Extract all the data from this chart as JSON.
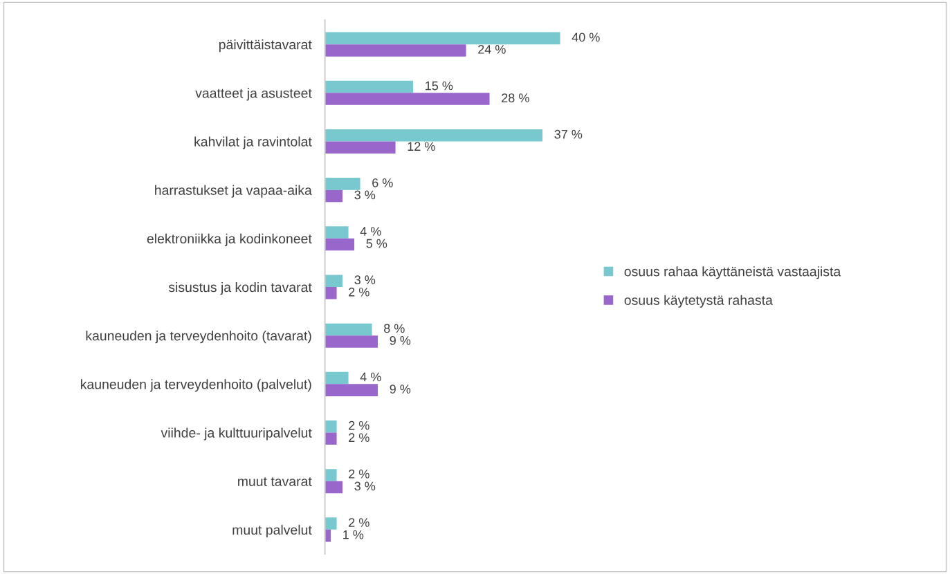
{
  "chart_data": {
    "type": "bar",
    "orientation": "horizontal",
    "categories": [
      "päivittäistavarat",
      "vaatteet ja asusteet",
      "kahvilat ja ravintolat",
      "harrastukset ja vapaa-aika",
      "elektroniikka ja kodinkoneet",
      "sisustus ja kodin tavarat",
      "kauneuden ja terveydenhoito (tavarat)",
      "kauneuden ja terveydenhoito (palvelut)",
      "viihde- ja kulttuuripalvelut",
      "muut tavarat",
      "muut palvelut"
    ],
    "series": [
      {
        "name": "osuus rahaa käyttäneistä vastaajista",
        "color": "#78c9cf",
        "values": [
          40,
          15,
          37,
          6,
          4,
          3,
          8,
          4,
          2,
          2,
          2
        ],
        "value_labels": [
          "40 %",
          "15 %",
          "37 %",
          "6 %",
          "4 %",
          "3 %",
          "8 %",
          "4 %",
          "2 %",
          "2 %",
          "2 %"
        ]
      },
      {
        "name": "osuus käytetystä rahasta",
        "color": "#9966cc",
        "values": [
          24,
          28,
          12,
          3,
          5,
          2,
          9,
          9,
          2,
          3,
          1
        ],
        "value_labels": [
          "24 %",
          "28 %",
          "12 %",
          "3 %",
          "5 %",
          "2 %",
          "9 %",
          "9 %",
          "2 %",
          "3 %",
          "1 %"
        ]
      }
    ],
    "tick_labels": "y",
    "grid": false,
    "legend": "right"
  }
}
